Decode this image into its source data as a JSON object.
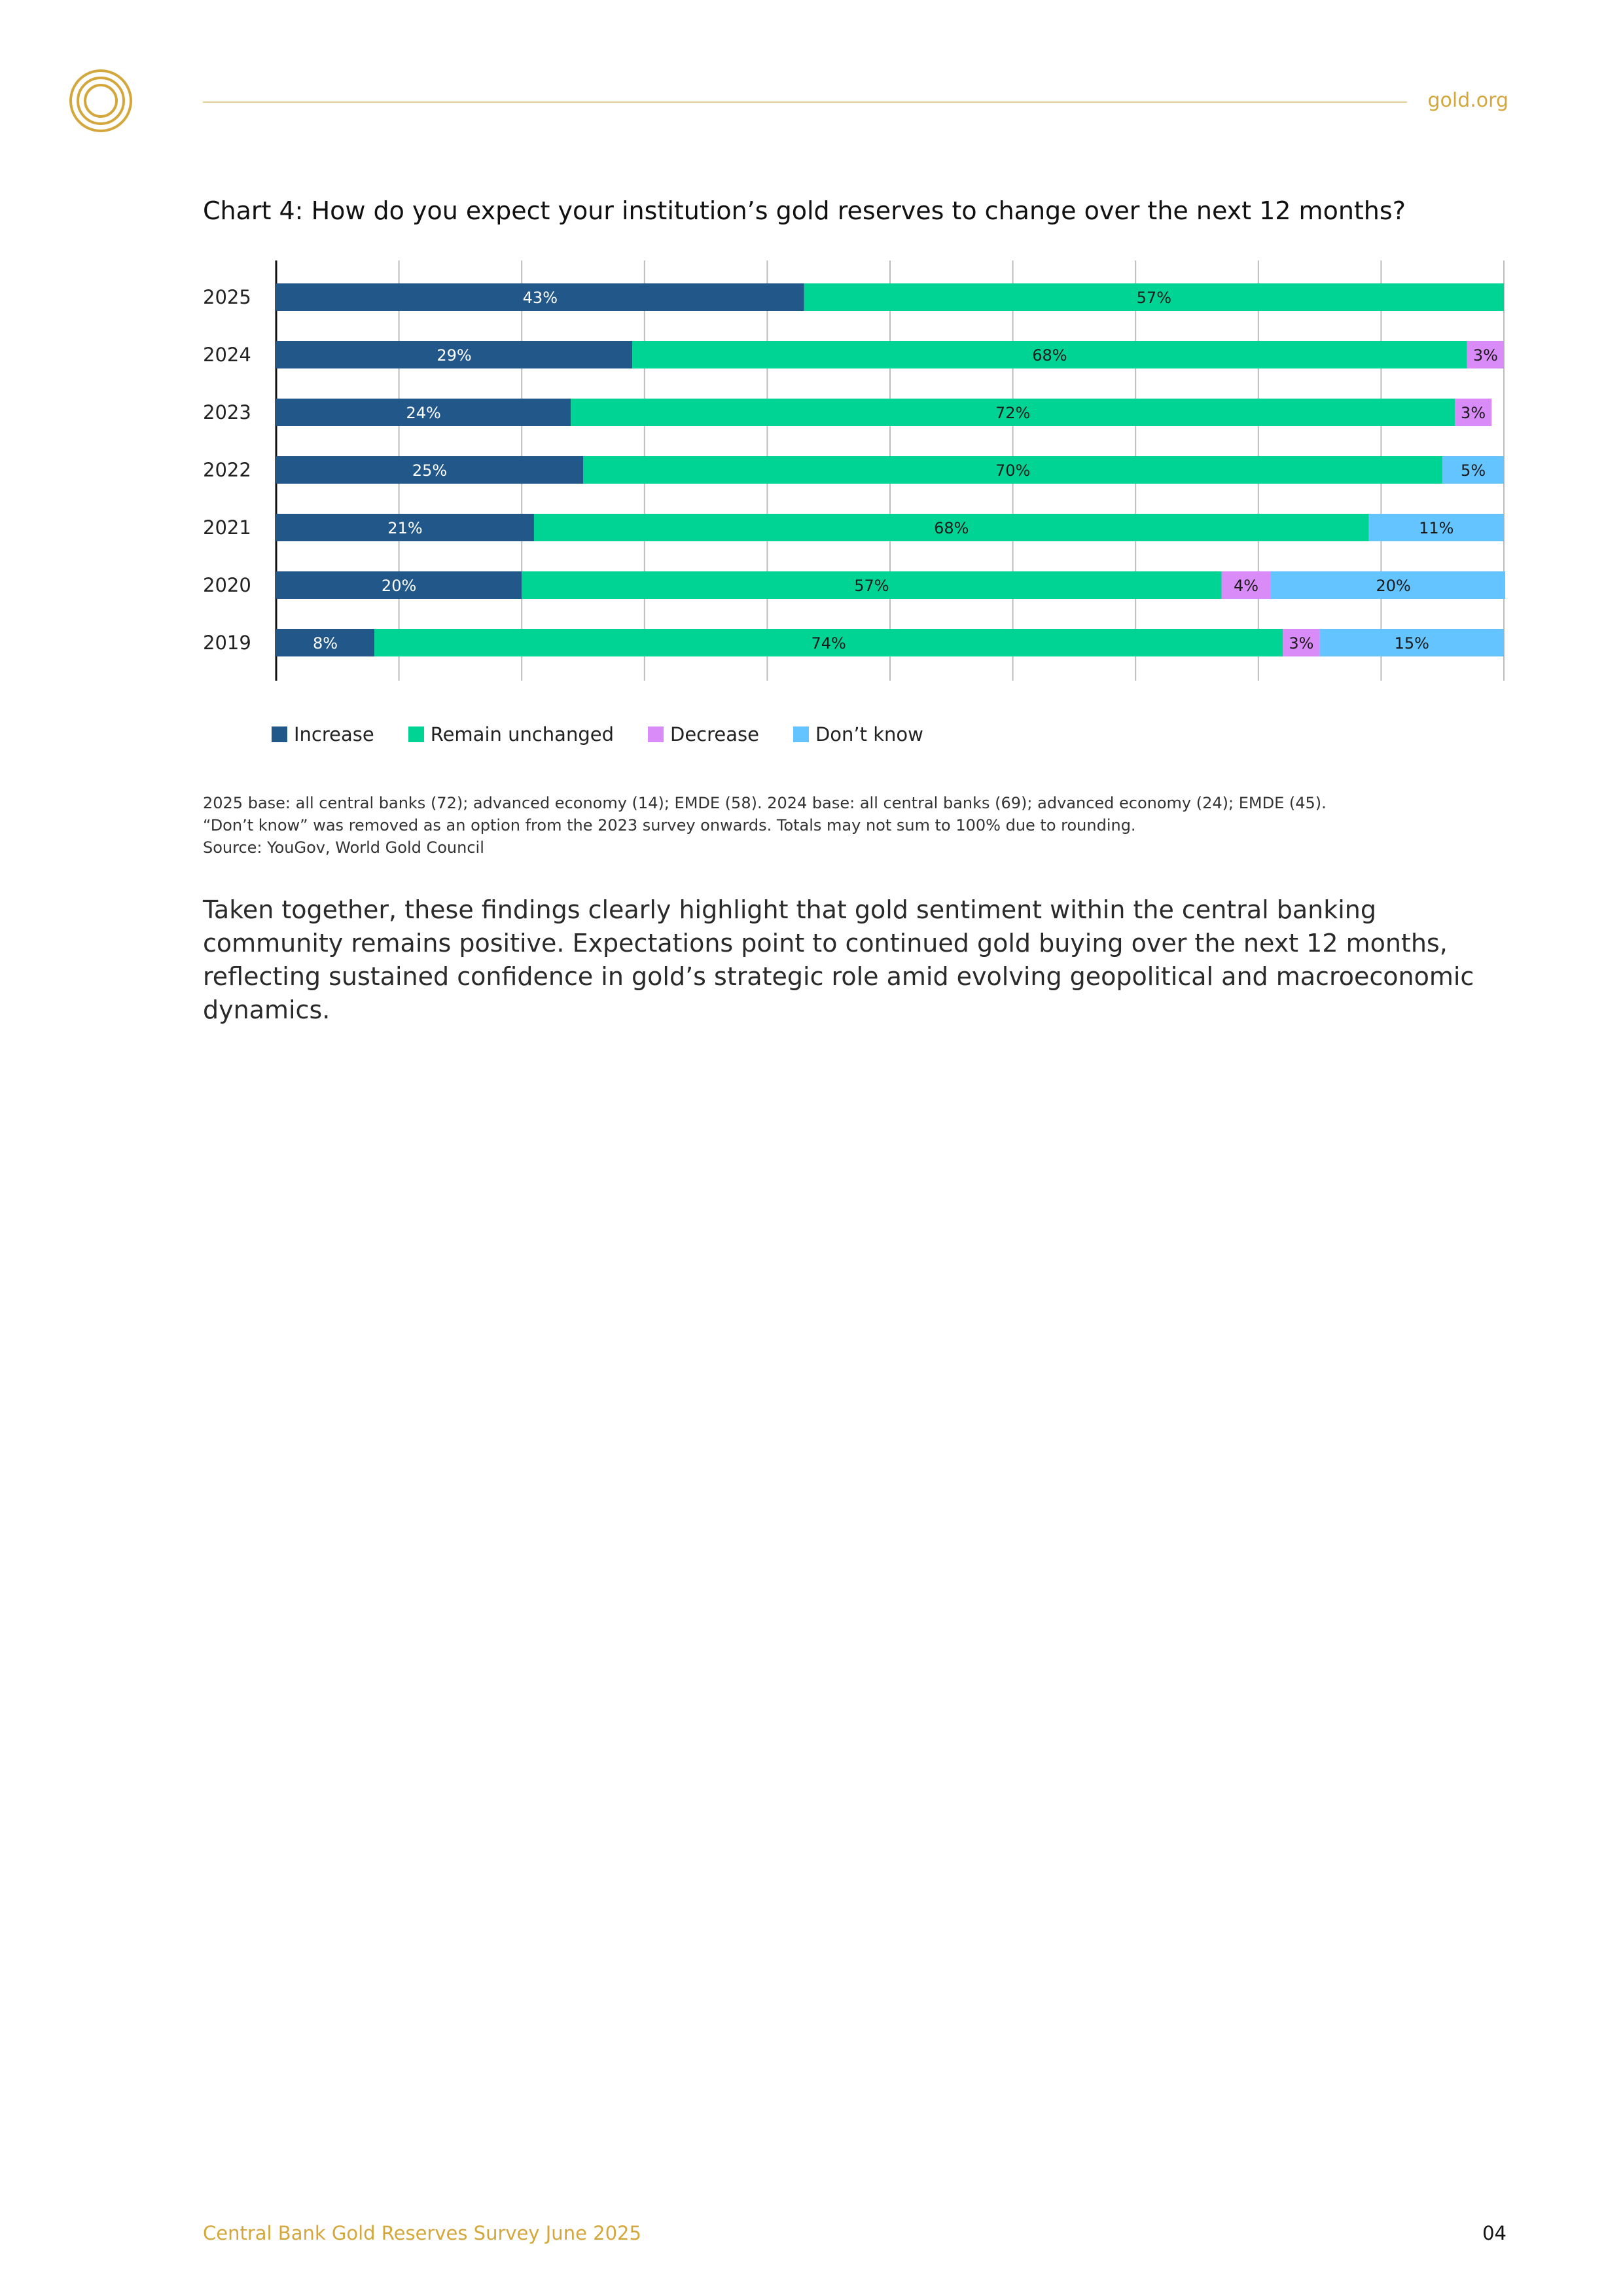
{
  "header": {
    "site": "gold.org"
  },
  "chart_title": "Chart 4: How do you expect your institution’s gold reserves to change over the next 12 months?",
  "colors": {
    "increase": "#22578a",
    "remain": "#00d495",
    "decrease": "#d98cf7",
    "dont_know": "#63c4ff",
    "gold": "#d4a73c",
    "grid": "#bdbdbd"
  },
  "chart_data": {
    "type": "bar",
    "orientation": "horizontal",
    "stacked": true,
    "categories": [
      "2025",
      "2024",
      "2023",
      "2022",
      "2021",
      "2020",
      "2019"
    ],
    "series": [
      {
        "name": "Increase",
        "values": [
          43,
          29,
          24,
          25,
          21,
          20,
          8
        ],
        "color": "#22578a",
        "labels": [
          "43%",
          "29%",
          "24%",
          "25%",
          "21%",
          "20%",
          "8%"
        ]
      },
      {
        "name": "Remain unchanged",
        "values": [
          57,
          68,
          72,
          70,
          68,
          57,
          74
        ],
        "color": "#00d495",
        "labels": [
          "57%",
          "68%",
          "72%",
          "70%",
          "68%",
          "57%",
          "74%"
        ]
      },
      {
        "name": "Decrease",
        "values": [
          0,
          3,
          3,
          0,
          0,
          4,
          3
        ],
        "color": "#d98cf7",
        "labels": [
          "",
          "3%",
          "3%",
          "",
          "",
          "4%",
          "3%"
        ]
      },
      {
        "name": "Don’t know",
        "values": [
          0,
          0,
          0,
          5,
          11,
          20,
          15
        ],
        "color": "#63c4ff",
        "labels": [
          "",
          "",
          "",
          "5%",
          "11%",
          "20%",
          "15%"
        ]
      }
    ],
    "xlim": [
      0,
      100
    ],
    "grid": true,
    "legend_position": "bottom"
  },
  "legend": [
    {
      "label": "Increase",
      "color": "#22578a"
    },
    {
      "label": "Remain unchanged",
      "color": "#00d495"
    },
    {
      "label": "Decrease",
      "color": "#d98cf7"
    },
    {
      "label": "Don’t know",
      "color": "#63c4ff"
    }
  ],
  "notes": [
    "2025 base: all central banks (72); advanced economy (14); EMDE (58). 2024 base: all central banks (69); advanced economy (24); EMDE (45).",
    "“Don’t know” was removed as an option from the 2023 survey onwards. Totals may not sum to 100% due to rounding.",
    "Source: YouGov, World Gold Council"
  ],
  "body_text": "Taken together, these findings clearly highlight that gold sentiment within the central banking community remains positive. Expectations point to continued gold buying over the next 12 months, reflecting sustained confidence in gold’s strategic role amid evolving geopolitical and macroeconomic dynamics.",
  "footer": {
    "publication": "Central Bank Gold Reserves Survey June 2025",
    "page_number": "04"
  }
}
